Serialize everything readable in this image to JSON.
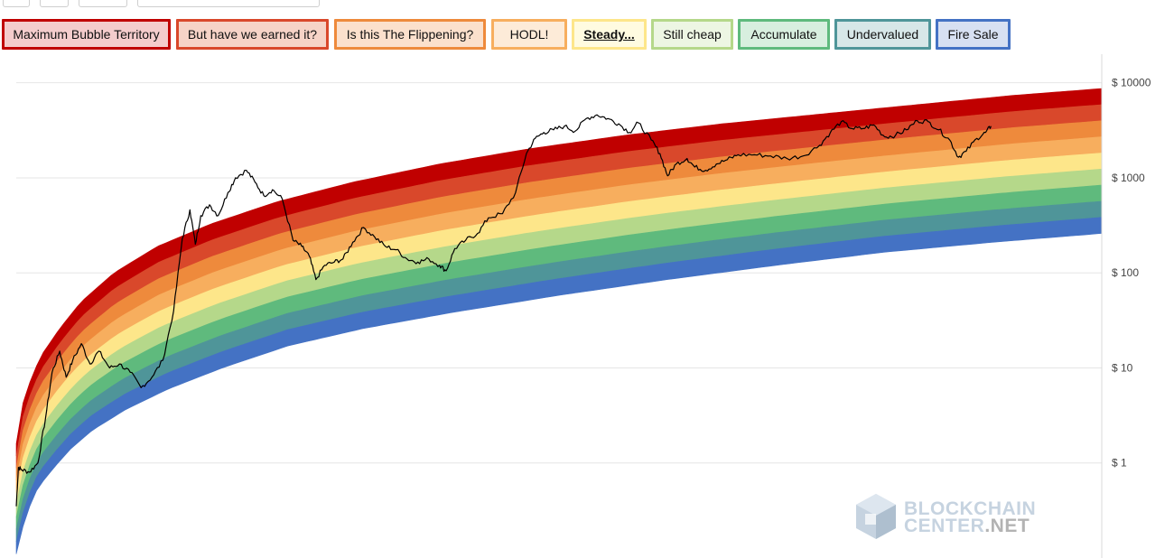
{
  "legend": {
    "items": [
      {
        "label": "Maximum Bubble Territory",
        "border": "#c00000",
        "fill": "#f4cccc"
      },
      {
        "label": "But have we earned it?",
        "border": "#d9482b",
        "fill": "#f6d3c7"
      },
      {
        "label": "Is this The Flippening?",
        "border": "#ee8a3c",
        "fill": "#fbe0cc"
      },
      {
        "label": "HODL!",
        "border": "#f7ae5e",
        "fill": "#fdebd8"
      },
      {
        "label": "Steady...",
        "border": "#fde68a",
        "fill": "#fffbe0",
        "active": true
      },
      {
        "label": "Still cheap",
        "border": "#b5d88a",
        "fill": "#edf6e3"
      },
      {
        "label": "Accumulate",
        "border": "#5fba7d",
        "fill": "#d8efdf"
      },
      {
        "label": "Undervalued",
        "border": "#4f9599",
        "fill": "#d7e7e8"
      },
      {
        "label": "Fire Sale",
        "border": "#4472c4",
        "fill": "#d7e0f2"
      }
    ]
  },
  "logo": {
    "line1": "BLOCKCHAIN",
    "line2a": "CENTER",
    "line2b": ".NET"
  },
  "chart_data": {
    "type": "area",
    "scale": "log",
    "yaxis_side": "right",
    "y_ticks": [
      {
        "value": 1,
        "label": "$ 1"
      },
      {
        "value": 10,
        "label": "$ 10"
      },
      {
        "value": 100,
        "label": "$ 100"
      },
      {
        "value": 1000,
        "label": "$ 1000"
      },
      {
        "value": 10000,
        "label": "$ 10000"
      }
    ],
    "grid": true,
    "ylim": [
      0.1,
      20000
    ],
    "x_start": 0,
    "x_end": 100,
    "band_colors": [
      "#c00000",
      "#d9482b",
      "#ee8a3c",
      "#f7ae5e",
      "#fde68a",
      "#b5d88a",
      "#5fba7d",
      "#4f9599",
      "#4472c4"
    ],
    "band_top": [
      [
        0,
        1.6
      ],
      [
        0.3,
        3.2
      ],
      [
        1,
        6
      ],
      [
        2.2,
        13
      ],
      [
        4,
        26
      ],
      [
        6,
        50
      ],
      [
        9,
        100
      ],
      [
        13,
        190
      ],
      [
        18,
        330
      ],
      [
        24,
        560
      ],
      [
        31,
        900
      ],
      [
        39,
        1400
      ],
      [
        47,
        2000
      ],
      [
        56,
        2800
      ],
      [
        65,
        3700
      ],
      [
        75,
        4800
      ],
      [
        85,
        6200
      ],
      [
        92,
        7400
      ],
      [
        100,
        8700
      ]
    ],
    "band_bottom": [
      [
        0,
        0.11
      ],
      [
        0.3,
        0.16
      ],
      [
        1,
        0.3
      ],
      [
        2,
        0.55
      ],
      [
        3.5,
        0.9
      ],
      [
        5,
        1.4
      ],
      [
        7,
        2.2
      ],
      [
        10,
        3.6
      ],
      [
        14,
        6
      ],
      [
        19,
        10
      ],
      [
        25,
        17
      ],
      [
        32,
        26
      ],
      [
        40,
        38
      ],
      [
        50,
        58
      ],
      [
        60,
        85
      ],
      [
        70,
        120
      ],
      [
        80,
        165
      ],
      [
        90,
        210
      ],
      [
        100,
        260
      ]
    ],
    "price": [
      [
        0,
        0.35
      ],
      [
        0.2,
        0.9
      ],
      [
        0.5,
        0.85
      ],
      [
        1.2,
        0.8
      ],
      [
        2.0,
        1.0
      ],
      [
        2.7,
        3.0
      ],
      [
        3.3,
        9.0
      ],
      [
        4.0,
        15
      ],
      [
        4.6,
        8
      ],
      [
        5.2,
        12
      ],
      [
        6.0,
        18
      ],
      [
        6.8,
        11
      ],
      [
        7.6,
        15
      ],
      [
        8.6,
        10
      ],
      [
        9.5,
        11
      ],
      [
        10.5,
        9
      ],
      [
        11.5,
        6.2
      ],
      [
        12.5,
        8
      ],
      [
        13.5,
        12
      ],
      [
        14.5,
        40
      ],
      [
        15.3,
        230
      ],
      [
        16.0,
        460
      ],
      [
        16.5,
        200
      ],
      [
        17.0,
        400
      ],
      [
        17.8,
        520
      ],
      [
        18.6,
        400
      ],
      [
        19.5,
        700
      ],
      [
        20.2,
        1000
      ],
      [
        21.2,
        1200
      ],
      [
        22.0,
        900
      ],
      [
        22.8,
        650
      ],
      [
        23.6,
        750
      ],
      [
        24.5,
        600
      ],
      [
        25.5,
        220
      ],
      [
        26.3,
        190
      ],
      [
        27.0,
        150
      ],
      [
        27.6,
        85
      ],
      [
        28.4,
        120
      ],
      [
        29.3,
        130
      ],
      [
        30.1,
        140
      ],
      [
        31.0,
        210
      ],
      [
        32.0,
        300
      ],
      [
        33.0,
        240
      ],
      [
        34.0,
        190
      ],
      [
        35.0,
        175
      ],
      [
        36.0,
        140
      ],
      [
        37.0,
        130
      ],
      [
        38.0,
        140
      ],
      [
        39.0,
        120
      ],
      [
        39.6,
        105
      ],
      [
        40.4,
        180
      ],
      [
        41.4,
        220
      ],
      [
        42.5,
        260
      ],
      [
        43.5,
        380
      ],
      [
        44.8,
        420
      ],
      [
        46.0,
        700
      ],
      [
        47.0,
        1800
      ],
      [
        47.8,
        2600
      ],
      [
        48.6,
        3000
      ],
      [
        49.5,
        3200
      ],
      [
        50.5,
        3500
      ],
      [
        51.5,
        3100
      ],
      [
        52.5,
        4200
      ],
      [
        53.5,
        4600
      ],
      [
        54.5,
        4200
      ],
      [
        55.5,
        3700
      ],
      [
        56.5,
        3000
      ],
      [
        57.3,
        3800
      ],
      [
        58.5,
        2500
      ],
      [
        59.3,
        1800
      ],
      [
        60.0,
        1050
      ],
      [
        60.8,
        1400
      ],
      [
        61.8,
        1600
      ],
      [
        62.5,
        1300
      ],
      [
        63.5,
        1200
      ],
      [
        64.5,
        1400
      ],
      [
        65.5,
        1550
      ],
      [
        66.5,
        1750
      ],
      [
        68.0,
        1750
      ],
      [
        69.5,
        1700
      ],
      [
        71.0,
        1600
      ],
      [
        72.5,
        1700
      ],
      [
        74.0,
        2200
      ],
      [
        75.0,
        3000
      ],
      [
        76.0,
        3900
      ],
      [
        77.0,
        3300
      ],
      [
        78.0,
        3300
      ],
      [
        79.0,
        3600
      ],
      [
        80.0,
        2700
      ],
      [
        81.0,
        2800
      ],
      [
        82.0,
        3200
      ],
      [
        83.0,
        4000
      ],
      [
        84.0,
        3900
      ],
      [
        85.0,
        3200
      ],
      [
        86.0,
        2500
      ],
      [
        86.8,
        1650
      ],
      [
        87.5,
        1900
      ],
      [
        88.5,
        2600
      ],
      [
        89.3,
        3000
      ],
      [
        89.8,
        3500
      ]
    ]
  }
}
